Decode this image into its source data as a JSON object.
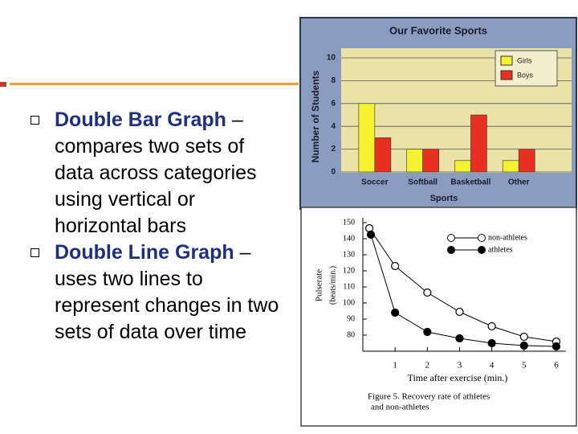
{
  "slide": {
    "bullets": [
      {
        "term": "Double Bar Graph",
        "text": "– compares two sets of data across categories using vertical or horizontal bars"
      },
      {
        "term": "Double Line Graph",
        "text": "– uses two lines to represent changes in two sets of data over time"
      }
    ]
  },
  "chart_data": [
    {
      "type": "bar",
      "title": "Our Favorite Sports",
      "y_label": "Number of Students",
      "x_label": "Sports",
      "categories": [
        "Soccer",
        "Softball",
        "Basketball",
        "Other"
      ],
      "series": [
        {
          "name": "Girls",
          "color": "#f2f230",
          "values": [
            6,
            2,
            1,
            1
          ]
        },
        {
          "name": "Boys",
          "color": "#e83020",
          "values": [
            3,
            2,
            5,
            2
          ]
        }
      ],
      "ylim": [
        0,
        10
      ],
      "yticks": [
        0,
        2,
        4,
        6,
        8,
        10
      ],
      "grid": true,
      "legend": "top-right"
    },
    {
      "type": "line",
      "y_label": [
        "Pulserate",
        "(beats/min.)"
      ],
      "x_label": "Time after exercise (min.)",
      "caption": [
        "Figure 5. Recovery rate of athletes",
        "and non-athletes"
      ],
      "series": [
        {
          "name": "non-athletes",
          "color": "#000000",
          "marker": "open",
          "x": [
            0.2,
            1,
            2,
            3,
            4,
            5,
            6
          ],
          "values": [
            146.5,
            123,
            106.5,
            94.5,
            85.5,
            79,
            76
          ]
        },
        {
          "name": "athletes",
          "color": "#000000",
          "marker": "filled",
          "x": [
            0.25,
            1,
            2,
            3,
            4,
            5,
            6
          ],
          "values": [
            142.5,
            94,
            82,
            78,
            75,
            73.5,
            73
          ]
        }
      ],
      "xlim": [
        0,
        6.3
      ],
      "xticks": [
        1,
        2,
        3,
        4,
        5,
        6
      ],
      "ylim": [
        70,
        153
      ],
      "yticks": [
        80,
        90,
        100,
        110,
        120,
        130,
        140,
        150
      ],
      "legend": "top-right"
    }
  ]
}
